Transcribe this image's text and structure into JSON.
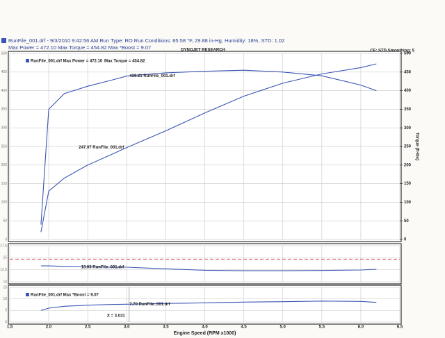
{
  "header": {
    "file": "RunFile_001.drf - 9/3/2010 9:42:56 AM  Run Type: RO  Run Conditions: 85.58 °F, 29.88 in-Hg,  Humidity:  18%, STD: 1.02",
    "maxima": "Max Power = 472.10  Max Torque = 454.82  Max *Boost = 9.07"
  },
  "chart_data": [
    {
      "type": "line",
      "title": "DYNOJET RESEARCH",
      "subtitle": "CF: STD  Smoothing: 5",
      "x": [
        1.9,
        2.0,
        2.2,
        2.5,
        2.8,
        3.0,
        3.5,
        4.0,
        4.5,
        5.0,
        5.5,
        6.0,
        6.2
      ],
      "xlim": [
        1.5,
        6.5
      ],
      "ylim": [
        0,
        500
      ],
      "yticks": [
        0,
        50,
        100,
        150,
        200,
        250,
        300,
        350,
        400,
        450,
        500
      ],
      "y2lim": [
        0,
        500
      ],
      "y2ticks": [
        0,
        50,
        100,
        150,
        200,
        250,
        300,
        350,
        400,
        450,
        500
      ],
      "y2label": "Torque (ft-lbs)",
      "grid": true,
      "series": [
        {
          "name": "RunFile_001.drf Max Power = 472.10",
          "color": "#3a55b4",
          "cursor_label": "247.07 RunFile_001.drf",
          "values": [
            20,
            130,
            165,
            200,
            228,
            247.07,
            292,
            340,
            385,
            420,
            445,
            462,
            472.1
          ]
        },
        {
          "name": "Max Torque = 454.82",
          "color": "#3a55b4",
          "axis": "y2",
          "cursor_label": "439.21 RunFile_001.drf",
          "values": [
            40,
            350,
            392,
            412,
            428,
            439.21,
            448,
            452,
            454.82,
            450,
            440,
            415,
            400
          ]
        }
      ]
    },
    {
      "type": "line",
      "x": [
        1.9,
        2.0,
        2.2,
        2.5,
        2.8,
        3.0,
        3.5,
        4.0,
        4.5,
        5.0,
        5.5,
        6.0,
        6.2
      ],
      "xlim": [
        1.5,
        6.5
      ],
      "ylim": [
        10,
        17.5
      ],
      "yticks": [
        10,
        12.5,
        15,
        17.5
      ],
      "grid": true,
      "reference": 14.7,
      "reference_color": "#d84848",
      "series": [
        {
          "color": "#3a55b4",
          "cursor_label": "13.03 RunFile_001.drf",
          "values": [
            13.3,
            13.3,
            13.2,
            13.1,
            13.05,
            13.03,
            12.7,
            12.4,
            12.3,
            12.3,
            12.35,
            12.45,
            12.6
          ]
        }
      ]
    },
    {
      "type": "line",
      "x": [
        1.9,
        2.0,
        2.2,
        2.5,
        2.8,
        3.0,
        3.5,
        4.0,
        4.5,
        5.0,
        5.5,
        6.0,
        6.2
      ],
      "xlim": [
        1.5,
        6.5
      ],
      "ylim": [
        0,
        15
      ],
      "yticks": [
        0,
        5,
        10,
        15
      ],
      "grid": true,
      "xticks": [
        {
          "value": 1.5,
          "label": "1.5"
        },
        {
          "value": 2,
          "label": "2.0"
        },
        {
          "value": 2.5,
          "label": "2.5"
        },
        {
          "value": 3,
          "label": "3.0"
        },
        {
          "value": 3.5,
          "label": "3.5"
        },
        {
          "value": 4,
          "label": "4.0"
        },
        {
          "value": 4.5,
          "label": "4.5"
        },
        {
          "value": 5,
          "label": "5.0"
        },
        {
          "value": 5.5,
          "label": "5.5"
        },
        {
          "value": 6,
          "label": "6.0"
        },
        {
          "value": 6.5,
          "label": "6.5"
        }
      ],
      "xlabel": "Engine Speed (RPM x1000)",
      "cursor": {
        "value": 3.031,
        "label": "X = 3.031"
      },
      "series": [
        {
          "name": "RunFile_001.drf Max *Boost = 9.07",
          "color": "#3a55b4",
          "cursor_label": "7.70 RunFile_001.drf",
          "values": [
            5,
            6,
            6.8,
            7.3,
            7.6,
            7.7,
            8.0,
            8.3,
            8.6,
            8.8,
            9.07,
            8.9,
            8.5
          ]
        }
      ]
    }
  ]
}
